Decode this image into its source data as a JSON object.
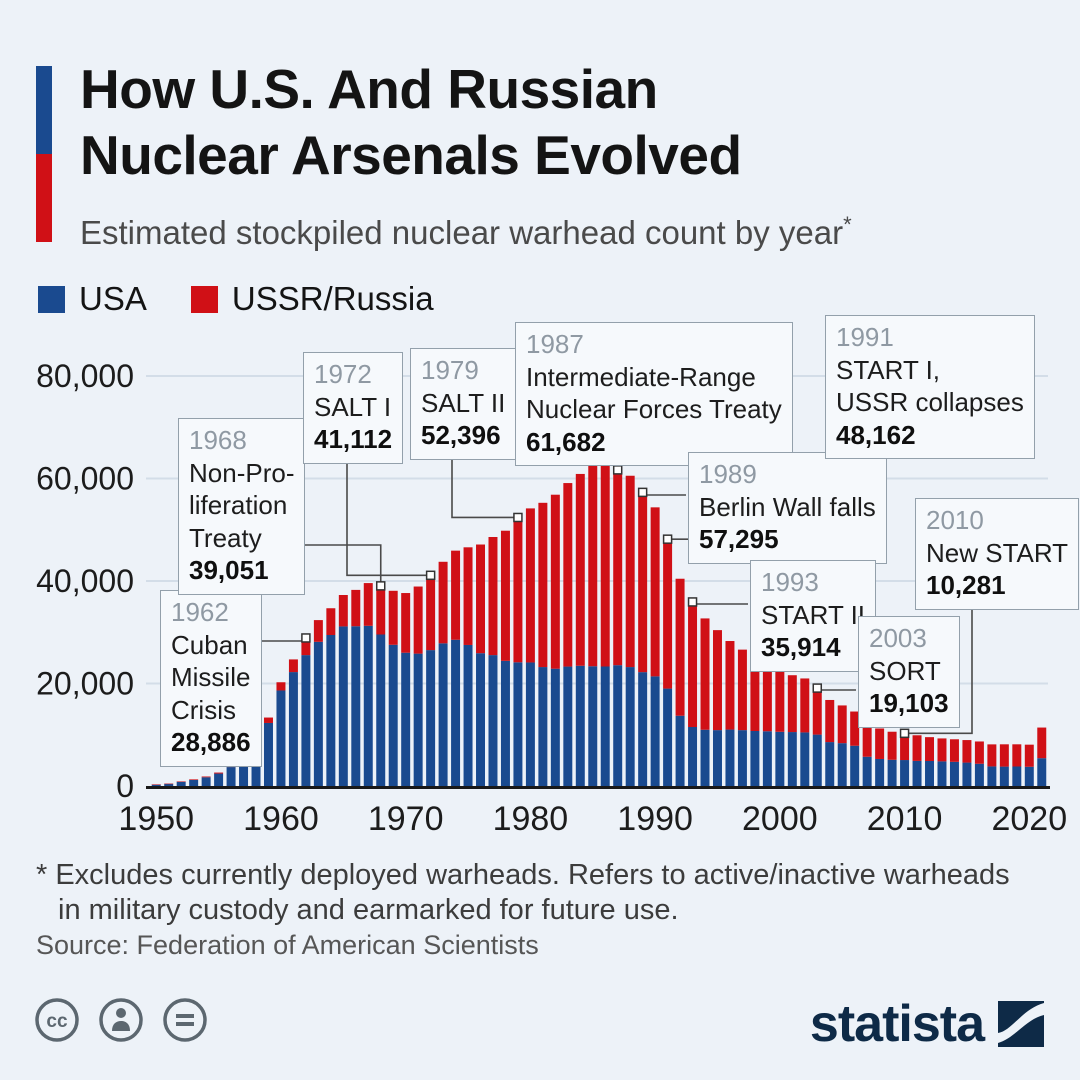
{
  "header": {
    "title_line1": "How U.S. And Russian",
    "title_line2": "Nuclear Arsenals Evolved",
    "subtitle": "Estimated stockpiled nuclear warhead count by year",
    "asterisk": "*"
  },
  "legend": [
    {
      "label": "USA",
      "color": "#1a4a8f"
    },
    {
      "label": "USSR/Russia",
      "color": "#d01016"
    }
  ],
  "colors": {
    "usa": "#1a4a8f",
    "russia": "#d01016",
    "background": "#edf2f8",
    "grid": "#d3dde8",
    "axis": "#191919",
    "connector": "#4a4a4a",
    "annotation_bg": "#f6f9fc",
    "annotation_border": "#93a0ab",
    "brand_navy": "#0e2a47",
    "icon_gray": "#5c6770"
  },
  "chart_data": {
    "type": "bar",
    "stacked": true,
    "title": "How U.S. And Russian Nuclear Arsenals Evolved",
    "subtitle": "Estimated stockpiled nuclear warhead count by year*",
    "xlabel": "",
    "ylabel": "",
    "ylim": [
      0,
      80000
    ],
    "grid": true,
    "legend_position": "top-left",
    "yticks": [
      0,
      20000,
      40000,
      60000,
      80000
    ],
    "ytick_labels": [
      "0",
      "20,000",
      "40,000",
      "60,000",
      "80,000"
    ],
    "xticks": [
      1950,
      1960,
      1970,
      1980,
      1990,
      2000,
      2010,
      2020
    ],
    "x": [
      1950,
      1951,
      1952,
      1953,
      1954,
      1955,
      1956,
      1957,
      1958,
      1959,
      1960,
      1961,
      1962,
      1963,
      1964,
      1965,
      1966,
      1967,
      1968,
      1969,
      1970,
      1971,
      1972,
      1973,
      1974,
      1975,
      1976,
      1977,
      1978,
      1979,
      1980,
      1981,
      1982,
      1983,
      1984,
      1985,
      1986,
      1987,
      1988,
      1989,
      1990,
      1991,
      1992,
      1993,
      1994,
      1995,
      1996,
      1997,
      1998,
      1999,
      2000,
      2001,
      2002,
      2003,
      2004,
      2005,
      2006,
      2007,
      2008,
      2009,
      2010,
      2011,
      2012,
      2013,
      2014,
      2015,
      2016,
      2017,
      2018,
      2019,
      2020,
      2021
    ],
    "series": [
      {
        "name": "USA",
        "color": "#1a4a8f",
        "values": [
          299,
          438,
          841,
          1169,
          1703,
          2422,
          3692,
          5543,
          7345,
          12298,
          18638,
          22229,
          25540,
          28133,
          29463,
          31139,
          31175,
          31255,
          29561,
          27552,
          26008,
          25830,
          26516,
          27835,
          28537,
          27519,
          25914,
          25542,
          24418,
          24138,
          24104,
          23208,
          22886,
          23305,
          23459,
          23368,
          23317,
          23575,
          23205,
          22217,
          21392,
          19008,
          13708,
          11511,
          10979,
          10904,
          11011,
          10903,
          10732,
          10685,
          10577,
          10526,
          10457,
          10027,
          8570,
          8360,
          7853,
          5709,
          5273,
          5113,
          5066,
          4897,
          4881,
          4804,
          4717,
          4571,
          4338,
          3822,
          3785,
          3805,
          3750,
          5428
        ]
      },
      {
        "name": "USSR/Russia",
        "color": "#d01016",
        "values": [
          5,
          25,
          50,
          120,
          150,
          200,
          426,
          660,
          869,
          1060,
          1605,
          2471,
          3346,
          4238,
          5221,
          6129,
          7089,
          8339,
          9490,
          10538,
          11643,
          13092,
          14596,
          15915,
          17385,
          19055,
          21205,
          23044,
          25393,
          28258,
          30062,
          32049,
          33952,
          35804,
          37431,
          39197,
          40159,
          38107,
          37333,
          35078,
          32980,
          29154,
          26734,
          24403,
          21719,
          19509,
          17278,
          15708,
          14144,
          12825,
          11957,
          11089,
          10527,
          9076,
          8215,
          7360,
          6678,
          6318,
          5951,
          5477,
          5215,
          5000,
          4650,
          4480,
          4400,
          4390,
          4350,
          4300,
          4350,
          4330,
          4315,
          5977
        ]
      }
    ],
    "annotations": [
      {
        "year": "1962",
        "lines": [
          "Cuban",
          "Missile",
          "Crisis"
        ],
        "value": "28,886",
        "target_year": 1962,
        "box": {
          "left": 160,
          "top": 590
        },
        "anchor": {
          "x": 252,
          "y": 641
        },
        "elbow": "hv"
      },
      {
        "year": "1968",
        "lines": [
          "Non-Pro-",
          "liferation",
          "Treaty"
        ],
        "value": "39,051",
        "target_year": 1968,
        "box": {
          "left": 178,
          "top": 418
        },
        "anchor": {
          "x": 292,
          "y": 545
        },
        "elbow": "hv"
      },
      {
        "year": "1972",
        "lines": [
          "SALT I"
        ],
        "value": "41,112",
        "target_year": 1972,
        "box": {
          "left": 303,
          "top": 352
        },
        "anchor": {
          "x": 347,
          "y": 455
        },
        "elbow": "vh"
      },
      {
        "year": "1979",
        "lines": [
          "SALT II"
        ],
        "value": "52,396",
        "target_year": 1979,
        "box": {
          "left": 410,
          "top": 348
        },
        "anchor": {
          "x": 452,
          "y": 455
        },
        "elbow": "vh"
      },
      {
        "year": "1987",
        "lines": [
          "Intermediate-Range",
          "Nuclear Forces Treaty"
        ],
        "value": "61,682",
        "target_year": 1987,
        "box": {
          "left": 515,
          "top": 322
        },
        "anchor": {
          "x": 617,
          "y": 456
        },
        "elbow": "vh"
      },
      {
        "year": "1989",
        "lines": [
          "Berlin Wall falls"
        ],
        "value": "57,295",
        "target_year": 1989,
        "box": {
          "left": 688,
          "top": 452
        },
        "anchor": {
          "x": 686,
          "y": 495
        },
        "elbow": "hv"
      },
      {
        "year": "1991",
        "lines": [
          "START I,",
          "USSR collapses"
        ],
        "value": "48,162",
        "target_year": 1991,
        "box": {
          "left": 825,
          "top": 315
        },
        "anchor": {
          "x": 868,
          "y": 450
        },
        "elbow": "vh"
      },
      {
        "year": "1993",
        "lines": [
          "START II"
        ],
        "value": "35,914",
        "target_year": 1993,
        "box": {
          "left": 750,
          "top": 560
        },
        "anchor": {
          "x": 748,
          "y": 604
        },
        "elbow": "hv"
      },
      {
        "year": "2003",
        "lines": [
          "SORT"
        ],
        "value": "19,103",
        "target_year": 2003,
        "box": {
          "left": 858,
          "top": 616
        },
        "anchor": {
          "x": 856,
          "y": 690
        },
        "elbow": "hv"
      },
      {
        "year": "2010",
        "lines": [
          "New START"
        ],
        "value": "10,281",
        "target_year": 2010,
        "box": {
          "left": 915,
          "top": 498
        },
        "anchor": {
          "x": 972,
          "y": 600
        },
        "elbow": "vh"
      }
    ]
  },
  "footnote": {
    "line1": "* Excludes currently deployed warheads. Refers to active/inactive warheads",
    "line2": "in military custody and earmarked for future use."
  },
  "source": "Source: Federation of American Scientists",
  "branding": {
    "logo_text": "statista"
  }
}
